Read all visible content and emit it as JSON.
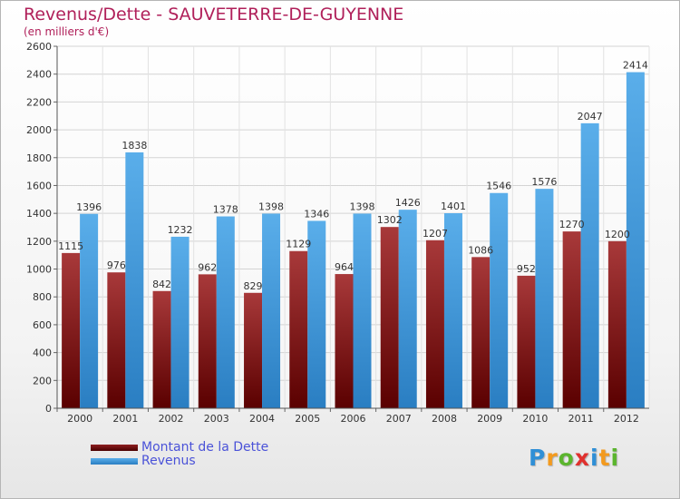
{
  "title": "Revenus/Dette - SAUVETERRE-DE-GUYENNE",
  "subtitle": "(en milliers d'€)",
  "brand": {
    "letters": [
      {
        "ch": "P",
        "color": "#2f8fd6"
      },
      {
        "ch": "r",
        "color": "#f39a1e"
      },
      {
        "ch": "o",
        "color": "#5bb52e"
      },
      {
        "ch": "x",
        "color": "#e0312e"
      },
      {
        "ch": "i",
        "color": "#2f8fd6"
      },
      {
        "ch": "t",
        "color": "#f39a1e"
      },
      {
        "ch": "i",
        "color": "#5bb52e"
      }
    ]
  },
  "chart_data": {
    "type": "bar",
    "title": "Revenus/Dette - SAUVETERRE-DE-GUYENNE",
    "subtitle": "(en milliers d'€)",
    "categories": [
      "2000",
      "2001",
      "2002",
      "2003",
      "2004",
      "2005",
      "2006",
      "2007",
      "2008",
      "2009",
      "2010",
      "2011",
      "2012"
    ],
    "series": [
      {
        "name": "Montant de la Dette",
        "values": [
          1115,
          976,
          842,
          962,
          829,
          1129,
          964,
          1302,
          1207,
          1086,
          952,
          1270,
          1200
        ],
        "color": "#9b2a2c"
      },
      {
        "name": "Revenus",
        "values": [
          1396,
          1838,
          1232,
          1378,
          1398,
          1346,
          1398,
          1426,
          1401,
          1546,
          1576,
          2047,
          2414
        ],
        "color": "#4ea6e8"
      }
    ],
    "ylim": [
      0,
      2600
    ],
    "yticks": [
      0,
      200,
      400,
      600,
      800,
      1000,
      1200,
      1400,
      1600,
      1800,
      2000,
      2200,
      2400,
      2600
    ],
    "grid": true,
    "legend": "bottom-left"
  }
}
